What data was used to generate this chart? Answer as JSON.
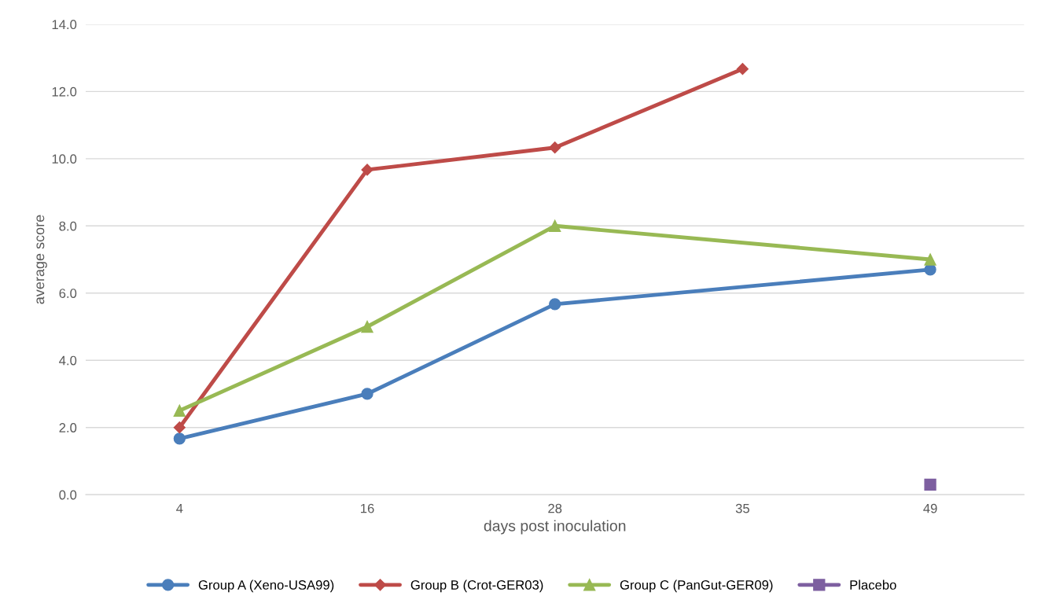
{
  "chart_data": {
    "type": "line",
    "xlabel": "days post inoculation",
    "ylabel": "average score",
    "categories": [
      "4",
      "16",
      "28",
      "35",
      "49"
    ],
    "series": [
      {
        "name": "Group A (Xeno-USA99)",
        "color": "#4a7ebb",
        "marker": "circle",
        "values": [
          1.67,
          3.0,
          5.67,
          null,
          6.7
        ]
      },
      {
        "name": "Group B (Crot-GER03)",
        "color": "#be4b48",
        "marker": "diamond",
        "values": [
          2.0,
          9.67,
          10.33,
          12.67,
          null
        ]
      },
      {
        "name": "Group C (PanGut-GER09)",
        "color": "#98b954",
        "marker": "triangle",
        "values": [
          2.5,
          5.0,
          8.0,
          null,
          7.0
        ]
      },
      {
        "name": "Placebo",
        "color": "#7d5fa0",
        "marker": "square",
        "values": [
          null,
          null,
          null,
          null,
          0.3
        ]
      }
    ],
    "ylim": [
      0,
      14
    ],
    "yticks": [
      {
        "value": 0,
        "label": "0.0"
      },
      {
        "value": 2,
        "label": "2.0"
      },
      {
        "value": 4,
        "label": "4.0"
      },
      {
        "value": 6,
        "label": "6.0"
      },
      {
        "value": 8,
        "label": "8.0"
      },
      {
        "value": 10,
        "label": "10.0"
      },
      {
        "value": 12,
        "label": "12.0"
      },
      {
        "value": 14,
        "label": "14.0"
      }
    ],
    "grid": "y",
    "legend": "bottom",
    "line_style": "solid"
  }
}
